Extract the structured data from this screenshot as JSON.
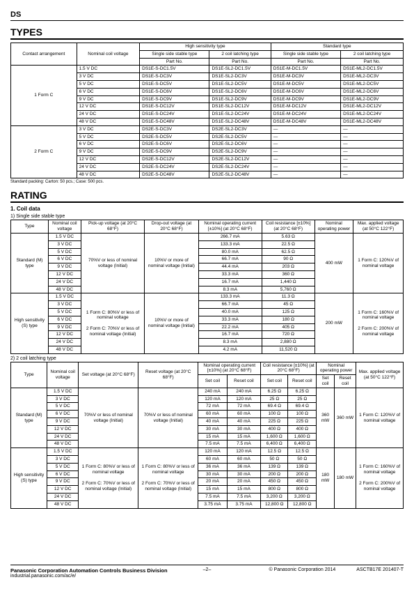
{
  "header": "DS",
  "types_title": "TYPES",
  "rating_title": "RATING",
  "coil_data_title": "1. Coil data",
  "sss_title": "1) Single side stable type",
  "tcl_title": "2) 2 coil latching type",
  "packing_note": "Standard packing: Carton: 50 pcs.; Case: 500 pcs.",
  "types": {
    "h1": "Contact arrangement",
    "h2": "Nominal coil voltage",
    "g1": "High sensitivity type",
    "g2": "Standard type",
    "c1": "Single side stable type",
    "c2": "2 coil latching type",
    "c3": "Single side stable type",
    "c4": "2 coil latching type",
    "pn": "Part No.",
    "form1": "1 Form C",
    "form2": "2 Form C",
    "rows1": [
      {
        "v": "1.5 V DC",
        "a": "DS1E-S-DC1.5V",
        "b": "DS1E-SL2-DC1.5V",
        "c": "DS1E-M-DC1.5V",
        "d": "DS1E-ML2-DC1.5V"
      },
      {
        "v": "3   V DC",
        "a": "DS1E-S-DC3V",
        "b": "DS1E-SL2-DC3V",
        "c": "DS1E-M-DC3V",
        "d": "DS1E-ML2-DC3V"
      },
      {
        "v": "5   V DC",
        "a": "DS1E-S-DC5V",
        "b": "DS1E-SL2-DC5V",
        "c": "DS1E-M-DC5V",
        "d": "DS1E-ML2-DC5V"
      },
      {
        "v": "6   V DC",
        "a": "DS1E-S-DC6V",
        "b": "DS1E-SL2-DC6V",
        "c": "DS1E-M-DC6V",
        "d": "DS1E-ML2-DC6V"
      },
      {
        "v": "9   V DC",
        "a": "DS1E-S-DC9V",
        "b": "DS1E-SL2-DC9V",
        "c": "DS1E-M-DC9V",
        "d": "DS1E-ML2-DC9V"
      },
      {
        "v": "12  V DC",
        "a": "DS1E-S-DC12V",
        "b": "DS1E-SL2-DC12V",
        "c": "DS1E-M-DC12V",
        "d": "DS1E-ML2-DC12V"
      },
      {
        "v": "24  V DC",
        "a": "DS1E-S-DC24V",
        "b": "DS1E-SL2-DC24V",
        "c": "DS1E-M-DC24V",
        "d": "DS1E-ML2-DC24V"
      },
      {
        "v": "48  V DC",
        "a": "DS1E-S-DC48V",
        "b": "DS1E-SL2-DC48V",
        "c": "DS1E-M-DC48V",
        "d": "DS1E-ML2-DC48V"
      }
    ],
    "rows2": [
      {
        "v": "3   V DC",
        "a": "DS2E-S-DC3V",
        "b": "DS2E-SL2-DC3V",
        "c": "—",
        "d": "—"
      },
      {
        "v": "5   V DC",
        "a": "DS2E-S-DC5V",
        "b": "DS2E-SL2-DC5V",
        "c": "—",
        "d": "—"
      },
      {
        "v": "6   V DC",
        "a": "DS2E-S-DC6V",
        "b": "DS2E-SL2-DC6V",
        "c": "—",
        "d": "—"
      },
      {
        "v": "9   V DC",
        "a": "DS2E-S-DC9V",
        "b": "DS2E-SL2-DC9V",
        "c": "—",
        "d": "—"
      },
      {
        "v": "12  V DC",
        "a": "DS2E-S-DC12V",
        "b": "DS2E-SL2-DC12V",
        "c": "—",
        "d": "—"
      },
      {
        "v": "24  V DC",
        "a": "DS2E-S-DC24V",
        "b": "DS2E-SL2-DC24V",
        "c": "—",
        "d": "—"
      },
      {
        "v": "48  V DC",
        "a": "DS2E-S-DC48V",
        "b": "DS2E-SL2-DC48V",
        "c": "—",
        "d": "—"
      }
    ]
  },
  "sss": {
    "h": [
      "Type",
      "Nominal coil voltage",
      "Pick-up voltage (at 20°C 68°F)",
      "Drop-out voltage (at 20°C 68°F)",
      "Nominal operating current [±10%] (at 20°C 68°F)",
      "Coil resistance [±10%] (at 20°C 68°F)",
      "Nominal operating power",
      "Max. applied voltage (at 50°C 122°F)"
    ],
    "type1": "Standard (M) type",
    "type2": "High sensitivity (S) type",
    "pu1": "70%V or less of nominal voltage (Initial)",
    "do": "10%V or more of nominal voltage (Initial)",
    "pu2a": "1 Form C: 80%V or less of nominal voltage",
    "pu2b": "2 Form C: 70%V or less of nominal voltage (Initial)",
    "pw1": "400 mW",
    "pw2": "200 mW",
    "mv1": "1 Form C: 120%V of nominal voltage",
    "mv2a": "1 Form C: 160%V of nominal voltage",
    "mv2b": "2 Form C: 200%V of nominal voltage",
    "rows1": [
      {
        "v": "1.5 V DC",
        "i": "266.7 mA",
        "r": "5.63 Ω"
      },
      {
        "v": "3   V DC",
        "i": "133.3 mA",
        "r": "22.5   Ω"
      },
      {
        "v": "5   V DC",
        "i": "80.0 mA",
        "r": "62.5   Ω"
      },
      {
        "v": "6   V DC",
        "i": "66.7 mA",
        "r": "90    Ω"
      },
      {
        "v": "9   V DC",
        "i": "44.4 mA",
        "r": "203    Ω"
      },
      {
        "v": "12  V DC",
        "i": "33.3 mA",
        "r": "360    Ω"
      },
      {
        "v": "24  V DC",
        "i": "16.7 mA",
        "r": "1,440    Ω"
      },
      {
        "v": "48  V DC",
        "i": "8.3 mA",
        "r": "5,760    Ω"
      }
    ],
    "rows2": [
      {
        "v": "1.5 V DC",
        "i": "133.3 mA",
        "r": "11.3   Ω"
      },
      {
        "v": "3   V DC",
        "i": "66.7 mA",
        "r": "45    Ω"
      },
      {
        "v": "5   V DC",
        "i": "40.0 mA",
        "r": "125    Ω"
      },
      {
        "v": "6   V DC",
        "i": "33.3 mA",
        "r": "180    Ω"
      },
      {
        "v": "9   V DC",
        "i": "22.2 mA",
        "r": "405    Ω"
      },
      {
        "v": "12  V DC",
        "i": "16.7 mA",
        "r": "720    Ω"
      },
      {
        "v": "24  V DC",
        "i": "8.3 mA",
        "r": "2,880    Ω"
      },
      {
        "v": "48  V DC",
        "i": "4.2 mA",
        "r": "11,520    Ω"
      }
    ]
  },
  "tcl": {
    "h": [
      "Type",
      "Nominal coil voltage",
      "Set voltage (at 20°C 68°F)",
      "Reset voltage (at 20°C 68°F)",
      "Nominal operating current [±10%] (at 20°C 68°F)",
      "Coil resistance [±10%] (at 20°C 68°F)",
      "Nominal operating power",
      "Max. applied voltage (at 50°C 122°F)"
    ],
    "sc": "Set coil",
    "rc": "Reset coil",
    "type1": "Standard (M) type",
    "type2": "High sensitivity (S) type",
    "sv1": "70%V or less of nominal voltage (Initial)",
    "rv1": "70%V or less of nominal voltage (Initial)",
    "sv2a": "1 Form C: 80%V or less of nominal voltage",
    "sv2b": "2 Form C: 70%V or less of nominal voltage (Initial)",
    "rv2a": "1 Form C: 80%V or less of nominal voltage",
    "rv2b": "2 Form C: 70%V or less of nominal voltage (Initial)",
    "pw1": "360 mW",
    "pw2": "180 mW",
    "mv1": "1 Form C: 120%V of nominal voltage",
    "mv2a": "1 Form C: 160%V of nominal voltage",
    "mv2b": "2 Form C: 200%V of nominal voltage",
    "rows1": [
      {
        "v": "1.5 V DC",
        "is": "240   mA",
        "ir": "240   mA",
        "rs": "6.25 Ω",
        "rr": "6.25 Ω"
      },
      {
        "v": "3   V DC",
        "is": "120   mA",
        "ir": "120   mA",
        "rs": "25    Ω",
        "rr": "25    Ω"
      },
      {
        "v": "5   V DC",
        "is": "72   mA",
        "ir": "72   mA",
        "rs": "69.4   Ω",
        "rr": "69.4   Ω"
      },
      {
        "v": "6   V DC",
        "is": "60   mA",
        "ir": "60   mA",
        "rs": "100    Ω",
        "rr": "100    Ω"
      },
      {
        "v": "9   V DC",
        "is": "40   mA",
        "ir": "40   mA",
        "rs": "225    Ω",
        "rr": "225    Ω"
      },
      {
        "v": "12  V DC",
        "is": "30   mA",
        "ir": "30   mA",
        "rs": "400    Ω",
        "rr": "400    Ω"
      },
      {
        "v": "24  V DC",
        "is": "15   mA",
        "ir": "15   mA",
        "rs": "1,600    Ω",
        "rr": "1,600    Ω"
      },
      {
        "v": "48  V DC",
        "is": "7.5   mA",
        "ir": "7.5   mA",
        "rs": "6,400    Ω",
        "rr": "6,400    Ω"
      }
    ],
    "rows2": [
      {
        "v": "1.5 V DC",
        "is": "120   mA",
        "ir": "120   mA",
        "rs": "12.5   Ω",
        "rr": "12.5   Ω"
      },
      {
        "v": "3   V DC",
        "is": "60   mA",
        "ir": "60   mA",
        "rs": "50    Ω",
        "rr": "50    Ω"
      },
      {
        "v": "5   V DC",
        "is": "36   mA",
        "ir": "36   mA",
        "rs": "139    Ω",
        "rr": "139    Ω"
      },
      {
        "v": "6   V DC",
        "is": "30   mA",
        "ir": "30   mA",
        "rs": "200    Ω",
        "rr": "200    Ω"
      },
      {
        "v": "9   V DC",
        "is": "20   mA",
        "ir": "20   mA",
        "rs": "450    Ω",
        "rr": "450    Ω"
      },
      {
        "v": "12  V DC",
        "is": "15   mA",
        "ir": "15   mA",
        "rs": "800    Ω",
        "rr": "800    Ω"
      },
      {
        "v": "24  V DC",
        "is": "7.5   mA",
        "ir": "7.5   mA",
        "rs": "3,200    Ω",
        "rr": "3,200    Ω"
      },
      {
        "v": "48  V DC",
        "is": "3.75 mA",
        "ir": "3.75 mA",
        "rs": "12,800    Ω",
        "rr": "12,800    Ω"
      }
    ]
  },
  "footer": {
    "div": "Panasonic Corporation Automation Controls Business Division",
    "url": "industrial.panasonic.com/ac/e/",
    "page": "–2–",
    "copy": "© Panasonic Corporation 2014",
    "code": "ASCTB17E  201407-T"
  }
}
